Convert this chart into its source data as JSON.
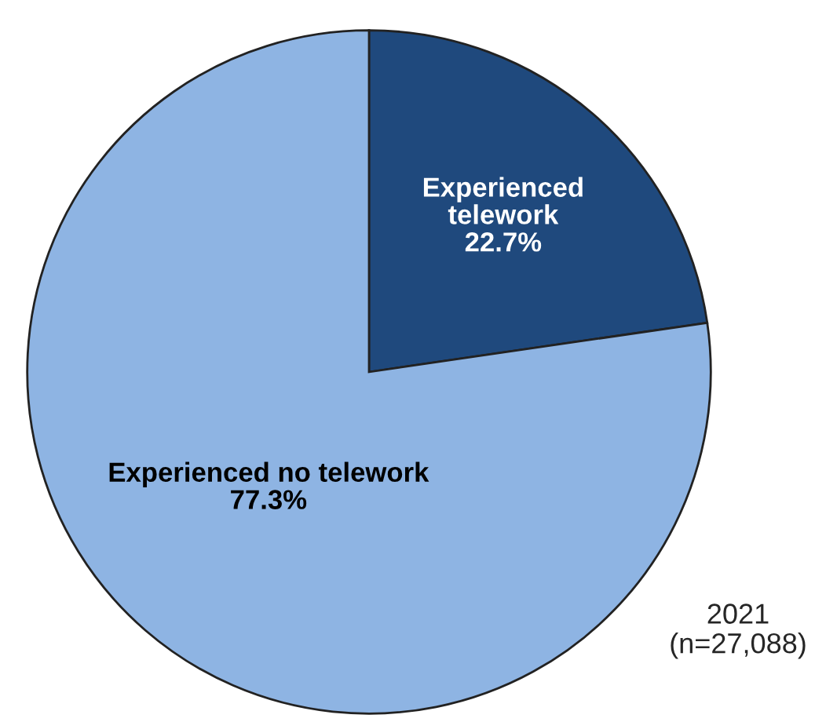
{
  "chart_data": {
    "type": "pie",
    "categories": [
      "Experienced\ntelework",
      "Experienced no telework"
    ],
    "values": [
      22.7,
      77.3
    ],
    "colors": [
      "#1f497d",
      "#8eb4e3"
    ],
    "value_labels": [
      "22.7%",
      "77.3%"
    ],
    "annotations": [
      "2021\n(n=27,088)"
    ],
    "legend": false
  }
}
